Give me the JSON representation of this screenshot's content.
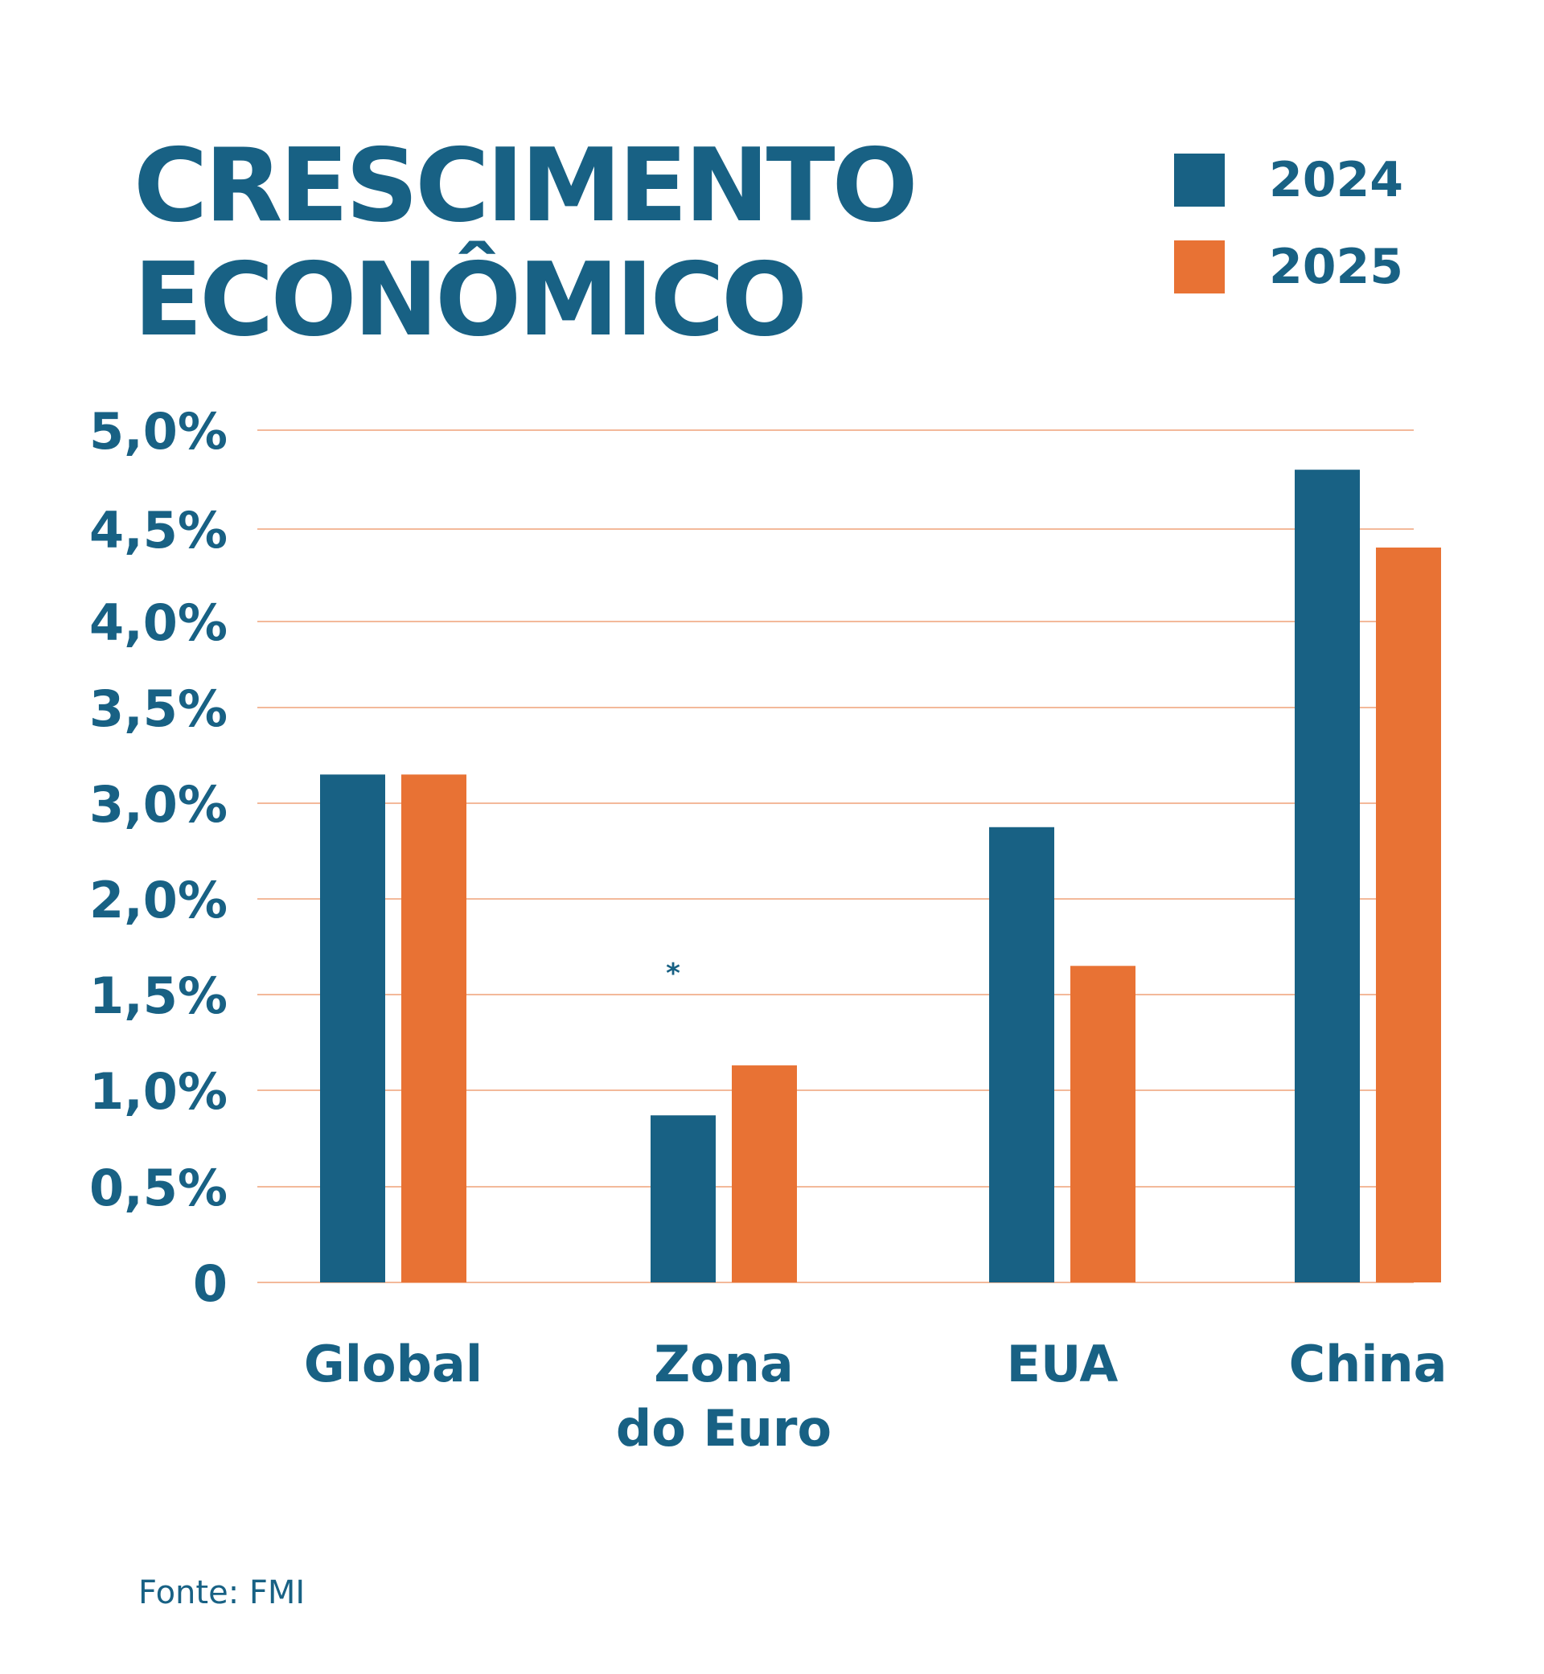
{
  "title": {
    "line1": "CRESCIMENTO",
    "line2": "ECONÔMICO"
  },
  "legend": [
    {
      "label": "2024",
      "color": "#186184"
    },
    {
      "label": "2025",
      "color": "#E87234"
    }
  ],
  "source": "Fonte: FMI",
  "colors": {
    "text": "#186184",
    "gridline": "#F3B99A",
    "background": "#FFFFFF"
  },
  "chart_data": {
    "type": "bar",
    "title": "CRESCIMENTO ECONÔMICO",
    "xlabel": "",
    "ylabel": "",
    "categories": [
      "Global",
      "Zona do Euro",
      "EUA",
      "China"
    ],
    "category_lines": [
      [
        "Global"
      ],
      [
        "Zona",
        "do Euro"
      ],
      [
        "EUA"
      ],
      [
        "China"
      ]
    ],
    "series": [
      {
        "name": "2024",
        "color": "#186184",
        "values": [
          3.15,
          0.87,
          2.75,
          4.8
        ]
      },
      {
        "name": "2025",
        "color": "#E87234",
        "values": [
          3.15,
          1.13,
          1.65,
          4.4
        ]
      }
    ],
    "y_ticks": [
      {
        "value": 0,
        "label": "0"
      },
      {
        "value": 0.5,
        "label": "0,5%"
      },
      {
        "value": 1.0,
        "label": "1,0%"
      },
      {
        "value": 1.5,
        "label": "1,5%"
      },
      {
        "value": 2.0,
        "label": "2,0%"
      },
      {
        "value": 3.0,
        "label": "3,0%"
      },
      {
        "value": 3.5,
        "label": "3,5%"
      },
      {
        "value": 4.0,
        "label": "4,0%"
      },
      {
        "value": 4.5,
        "label": "4,5%"
      },
      {
        "value": 5.0,
        "label": "5,0%"
      }
    ],
    "ylim": [
      0,
      5.0
    ],
    "grid": true,
    "legend_position": "top-right",
    "annotations": [
      {
        "category": "Zona do Euro",
        "text": "*"
      }
    ]
  }
}
